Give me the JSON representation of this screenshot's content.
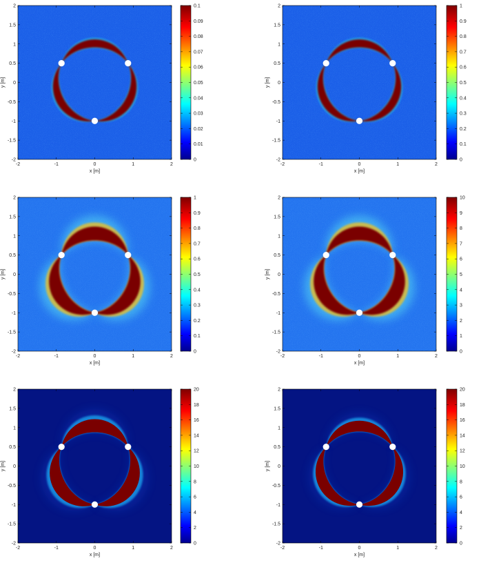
{
  "figure": {
    "description_panels": 6,
    "colormap": "jet"
  },
  "colors": {
    "background_field": "#1560e6",
    "dark_field": "#05127f",
    "band": "#7a0000",
    "sensor": "#ffffff",
    "axis": "#000000"
  },
  "axis_text": {
    "xlabel": "x [m]",
    "ylabel": "y [m]"
  },
  "chart_data": [
    {
      "type": "heatmap",
      "panel": "top-left",
      "xlabel": "x [m]",
      "ylabel": "y [m]",
      "xlim": [
        -2,
        2
      ],
      "ylim": [
        -2,
        2
      ],
      "xticks": [
        "-2",
        "-1",
        "0",
        "1",
        "2"
      ],
      "yticks": [
        "2",
        "1.5",
        "1",
        "0.5",
        "0",
        "-0.5",
        "-1",
        "-1.5",
        "-2"
      ],
      "colorbar": {
        "min": 0,
        "max": 0.1,
        "ticks": [
          "0.1",
          "0.09",
          "0.08",
          "0.07",
          "0.06",
          "0.05",
          "0.04",
          "0.03",
          "0.02",
          "0.01",
          "0"
        ]
      },
      "sensors": [
        {
          "x": -0.866,
          "y": 0.5
        },
        {
          "x": 0.866,
          "y": 0.5
        },
        {
          "x": 0,
          "y": -1
        }
      ],
      "circle": {
        "cx": 0,
        "cy": 0,
        "r": 1
      },
      "style": "thin-noisy"
    },
    {
      "type": "heatmap",
      "panel": "top-right",
      "xlabel": "x [m]",
      "ylabel": "y [m]",
      "xlim": [
        -2,
        2
      ],
      "ylim": [
        -2,
        2
      ],
      "xticks": [
        "-2",
        "-1",
        "0",
        "1",
        "2"
      ],
      "yticks": [
        "2",
        "1.5",
        "1",
        "0.5",
        "0",
        "-0.5",
        "-1",
        "-1.5",
        "-2"
      ],
      "colorbar": {
        "min": 0,
        "max": 1,
        "ticks": [
          "1",
          "0.9",
          "0.8",
          "0.7",
          "0.6",
          "0.5",
          "0.4",
          "0.3",
          "0.2",
          "0.1",
          "0"
        ]
      },
      "sensors": [
        {
          "x": -0.866,
          "y": 0.5
        },
        {
          "x": 0.866,
          "y": 0.5
        },
        {
          "x": 0,
          "y": -1
        }
      ],
      "circle": {
        "cx": 0,
        "cy": 0,
        "r": 1
      },
      "style": "thin-noisy"
    },
    {
      "type": "heatmap",
      "panel": "middle-left",
      "xlabel": "x [m]",
      "ylabel": "y [m]",
      "xlim": [
        -2,
        2
      ],
      "ylim": [
        -2,
        2
      ],
      "xticks": [
        "-2",
        "-1",
        "0",
        "1",
        "2"
      ],
      "yticks": [
        "2",
        "1.5",
        "1",
        "0.5",
        "0",
        "-0.5",
        "-1",
        "-1.5",
        "-2"
      ],
      "colorbar": {
        "min": 0,
        "max": 1,
        "ticks": [
          "1",
          "0.9",
          "0.8",
          "0.7",
          "0.6",
          "0.5",
          "0.4",
          "0.3",
          "0.2",
          "0.1",
          "0"
        ]
      },
      "sensors": [
        {
          "x": -0.866,
          "y": 0.5
        },
        {
          "x": 0.866,
          "y": 0.5
        },
        {
          "x": 0,
          "y": -1
        }
      ],
      "circle": {
        "cx": 0,
        "cy": 0,
        "r": 1
      },
      "style": "thick-noisy"
    },
    {
      "type": "heatmap",
      "panel": "middle-right",
      "xlabel": "x [m]",
      "ylabel": "y [m]",
      "xlim": [
        -2,
        2
      ],
      "ylim": [
        -2,
        2
      ],
      "xticks": [
        "-2",
        "-1",
        "0",
        "1",
        "2"
      ],
      "yticks": [
        "2",
        "1.5",
        "1",
        "0.5",
        "0",
        "-0.5",
        "-1",
        "-1.5",
        "-2"
      ],
      "colorbar": {
        "min": 0,
        "max": 10,
        "ticks": [
          "10",
          "9",
          "8",
          "7",
          "6",
          "5",
          "4",
          "3",
          "2",
          "1",
          "0"
        ]
      },
      "sensors": [
        {
          "x": -0.866,
          "y": 0.5
        },
        {
          "x": 0.866,
          "y": 0.5
        },
        {
          "x": 0,
          "y": -1
        }
      ],
      "circle": {
        "cx": 0,
        "cy": 0,
        "r": 1
      },
      "style": "thick-noisy"
    },
    {
      "type": "heatmap",
      "panel": "bottom-left",
      "xlabel": "x [m]",
      "ylabel": "y [m]",
      "xlim": [
        -2,
        2
      ],
      "ylim": [
        -2,
        2
      ],
      "xticks": [
        "-2",
        "-1",
        "0",
        "1",
        "2"
      ],
      "yticks": [
        "2",
        "1.5",
        "1",
        "0.5",
        "0",
        "-0.5",
        "-1",
        "-1.5",
        "-2"
      ],
      "colorbar": {
        "min": 0,
        "max": 20,
        "ticks": [
          "20",
          "18",
          "16",
          "14",
          "12",
          "10",
          "8",
          "6",
          "4",
          "2",
          "0"
        ]
      },
      "sensors": [
        {
          "x": -0.866,
          "y": 0.5
        },
        {
          "x": 0.866,
          "y": 0.5
        },
        {
          "x": 0,
          "y": -1
        }
      ],
      "circle": {
        "cx": 0,
        "cy": 0,
        "r": 1
      },
      "style": "thick-smooth"
    },
    {
      "type": "heatmap",
      "panel": "bottom-right",
      "xlabel": "x [m]",
      "ylabel": "y [m]",
      "xlim": [
        -2,
        2
      ],
      "ylim": [
        -2,
        2
      ],
      "xticks": [
        "-2",
        "-1",
        "0",
        "1",
        "2"
      ],
      "yticks": [
        "2",
        "1.5",
        "1",
        "0.5",
        "0",
        "-0.5",
        "-1",
        "-1.5",
        "-2"
      ],
      "colorbar": {
        "min": 0,
        "max": 20,
        "ticks": [
          "20",
          "18",
          "16",
          "14",
          "12",
          "10",
          "8",
          "6",
          "4",
          "2",
          "0"
        ]
      },
      "sensors": [
        {
          "x": -0.866,
          "y": 0.5
        },
        {
          "x": 0.866,
          "y": 0.5
        },
        {
          "x": 0,
          "y": -1
        }
      ],
      "circle": {
        "cx": 0,
        "cy": 0,
        "r": 1
      },
      "style": "medium-smooth"
    }
  ]
}
